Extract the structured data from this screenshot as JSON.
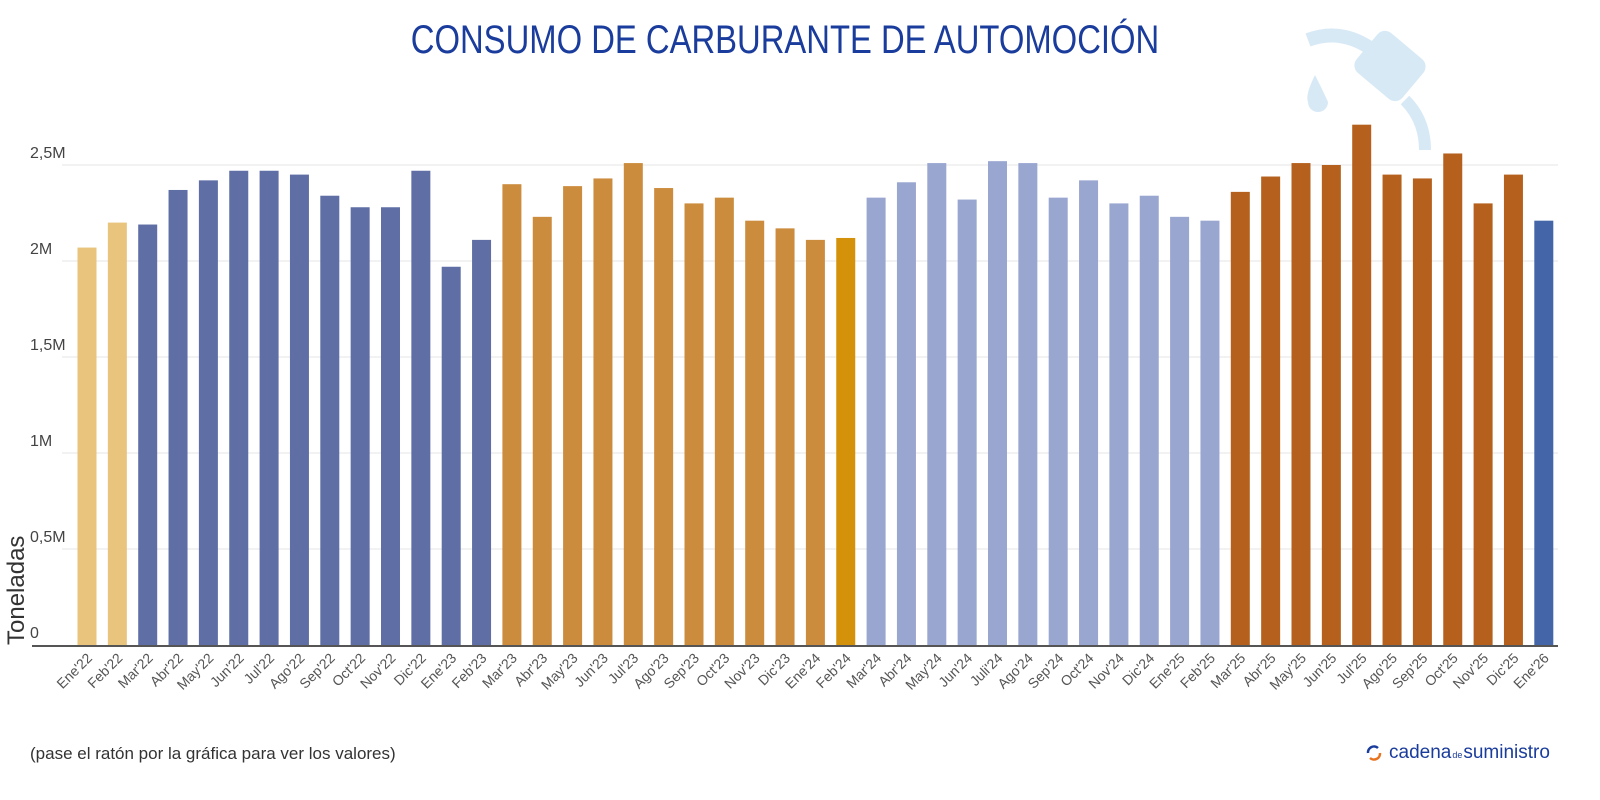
{
  "chart_data": {
    "type": "bar",
    "title": "CONSUMO DE CARBURANTE DE AUTOMOCIÓN",
    "ylabel": "Toneladas",
    "xlabel": "",
    "ylim": [
      0,
      2800000
    ],
    "yticks": [
      0,
      500000,
      1000000,
      1500000,
      2000000,
      2500000
    ],
    "ytick_labels": [
      "0",
      "0,5M",
      "1M",
      "1,5M",
      "2M",
      "2,5M"
    ],
    "grid": true,
    "categories": [
      "Ene'22",
      "Feb'22",
      "Mar'22",
      "Abr'22",
      "May'22",
      "Jun'22",
      "Jul'22",
      "Ago'22",
      "Sep'22",
      "Oct'22",
      "Nov'22",
      "Dic'22",
      "Ene'23",
      "Feb'23",
      "Mar'23",
      "Abr'23",
      "May'23",
      "Jun'23",
      "Jul'23",
      "Ago'23",
      "Sep'23",
      "Oct'23",
      "Nov'23",
      "Dic'23",
      "Ene'24",
      "Feb'24",
      "Mar'24",
      "Abr'24",
      "May'24",
      "Jun'24",
      "Juli'24",
      "Ago'24",
      "Sep'24",
      "Oct'24",
      "Nov'24",
      "Dic'24",
      "Ene'25",
      "Feb'25",
      "Mar'25",
      "Abr'25",
      "May'25",
      "Jun'25",
      "Jul'25",
      "Ago'25",
      "Sep'25",
      "Oct'25",
      "Nov'25",
      "Dic'25",
      "Ene'26"
    ],
    "values": [
      2070000,
      2200000,
      2190000,
      2370000,
      2420000,
      2470000,
      2470000,
      2450000,
      2340000,
      2280000,
      2280000,
      2470000,
      1970000,
      2110000,
      2400000,
      2230000,
      2390000,
      2430000,
      2510000,
      2380000,
      2300000,
      2330000,
      2210000,
      2170000,
      2110000,
      2120000,
      2330000,
      2410000,
      2510000,
      2320000,
      2520000,
      2510000,
      2330000,
      2420000,
      2300000,
      2340000,
      2230000,
      2210000,
      2360000,
      2440000,
      2510000,
      2500000,
      2710000,
      2450000,
      2430000,
      2560000,
      2300000,
      2450000,
      2210000
    ],
    "colors": [
      "#e8c47d",
      "#e8c47d",
      "#5f6fa6",
      "#5f6fa6",
      "#5f6fa6",
      "#5f6fa6",
      "#5f6fa6",
      "#5f6fa6",
      "#5f6fa6",
      "#5f6fa6",
      "#5f6fa6",
      "#5f6fa6",
      "#5f6fa6",
      "#5f6fa6",
      "#cc8c3e",
      "#cc8c3e",
      "#cc8c3e",
      "#cc8c3e",
      "#cc8c3e",
      "#cc8c3e",
      "#cc8c3e",
      "#cc8c3e",
      "#cc8c3e",
      "#cc8c3e",
      "#cc8c3e",
      "#d4920a",
      "#99a6d0",
      "#99a6d0",
      "#99a6d0",
      "#99a6d0",
      "#99a6d0",
      "#99a6d0",
      "#99a6d0",
      "#99a6d0",
      "#99a6d0",
      "#99a6d0",
      "#99a6d0",
      "#99a6d0",
      "#b5601c",
      "#b5601c",
      "#b5601c",
      "#b5601c",
      "#b5601c",
      "#b5601c",
      "#b5601c",
      "#b5601c",
      "#b5601c",
      "#b5601c",
      "#4466a8"
    ]
  },
  "note": "(pase el ratón por la gráfica para ver los valores)",
  "logo": {
    "text_main": "cadena",
    "text_small": "de",
    "text_end": "suministro"
  },
  "icons": {
    "decoration": "fuel-nozzle-icon",
    "logo": "refresh-arrows-icon"
  },
  "title_color": "#1a3c9c"
}
